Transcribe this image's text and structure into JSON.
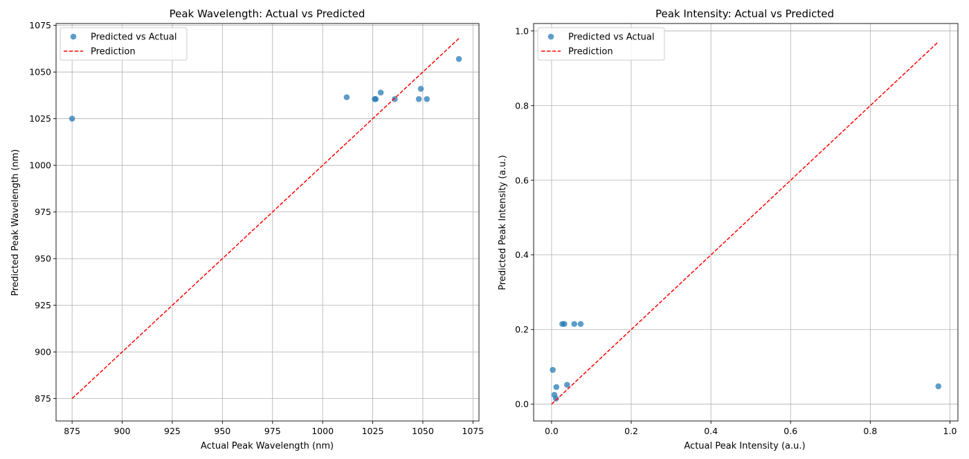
{
  "chart_data": [
    {
      "type": "scatter",
      "title": "Peak Wavelength: Actual vs Predicted",
      "xlabel": "Actual Peak Wavelength (nm)",
      "ylabel": "Predicted Peak Wavelength (nm)",
      "xlim": [
        867,
        1078
      ],
      "ylim": [
        863,
        1076
      ],
      "xticks": [
        875,
        900,
        925,
        950,
        975,
        1000,
        1025,
        1050,
        1075
      ],
      "yticks": [
        875,
        900,
        925,
        950,
        975,
        1000,
        1025,
        1050,
        1075
      ],
      "xtick_labels": [
        "875",
        "900",
        "925",
        "950",
        "975",
        "1000",
        "1025",
        "1050",
        "1075"
      ],
      "ytick_labels": [
        "875",
        "900",
        "925",
        "950",
        "975",
        "1000",
        "1025",
        "1050",
        "1075"
      ],
      "grid": true,
      "legend_position": "top-left",
      "series": [
        {
          "name": "Predicted vs Actual",
          "kind": "scatter",
          "color": "#1f77b4",
          "x": [
            875,
            1012,
            1026,
            1026.5,
            1029,
            1036,
            1048,
            1049,
            1052,
            1068
          ],
          "y": [
            1025,
            1036.5,
            1035.5,
            1035.5,
            1039,
            1035.5,
            1035.5,
            1041,
            1035.5,
            1057
          ]
        },
        {
          "name": "Prediction",
          "kind": "line",
          "style": "dashed",
          "color": "#ff0000",
          "x": [
            875,
            1068
          ],
          "y": [
            875,
            1068
          ]
        }
      ]
    },
    {
      "type": "scatter",
      "title": "Peak Intensity: Actual vs Predicted",
      "xlabel": "Actual Peak Intensity (a.u.)",
      "ylabel": "Predicted Peak Intensity (a.u.)",
      "xlim": [
        -0.045,
        1.02
      ],
      "ylim": [
        -0.045,
        1.02
      ],
      "xticks": [
        0,
        0.2,
        0.4,
        0.6,
        0.8,
        1.0
      ],
      "yticks": [
        0,
        0.2,
        0.4,
        0.6,
        0.8,
        1.0
      ],
      "xtick_labels": [
        "0.0",
        "0.2",
        "0.4",
        "0.6",
        "0.8",
        "1.0"
      ],
      "ytick_labels": [
        "0.0",
        "0.2",
        "0.4",
        "0.6",
        "0.8",
        "1.0"
      ],
      "grid": true,
      "legend_position": "top-left",
      "series": [
        {
          "name": "Predicted vs Actual",
          "kind": "scatter",
          "color": "#1f77b4",
          "x": [
            0.003,
            0.007,
            0.011,
            0.012,
            0.027,
            0.032,
            0.039,
            0.057,
            0.073,
            0.971
          ],
          "y": [
            0.092,
            0.025,
            0.015,
            0.046,
            0.215,
            0.215,
            0.052,
            0.215,
            0.215,
            0.048
          ]
        },
        {
          "name": "Prediction",
          "kind": "line",
          "style": "dashed",
          "color": "#ff0000",
          "x": [
            0.0,
            0.971
          ],
          "y": [
            0.0,
            0.971
          ]
        }
      ]
    }
  ]
}
